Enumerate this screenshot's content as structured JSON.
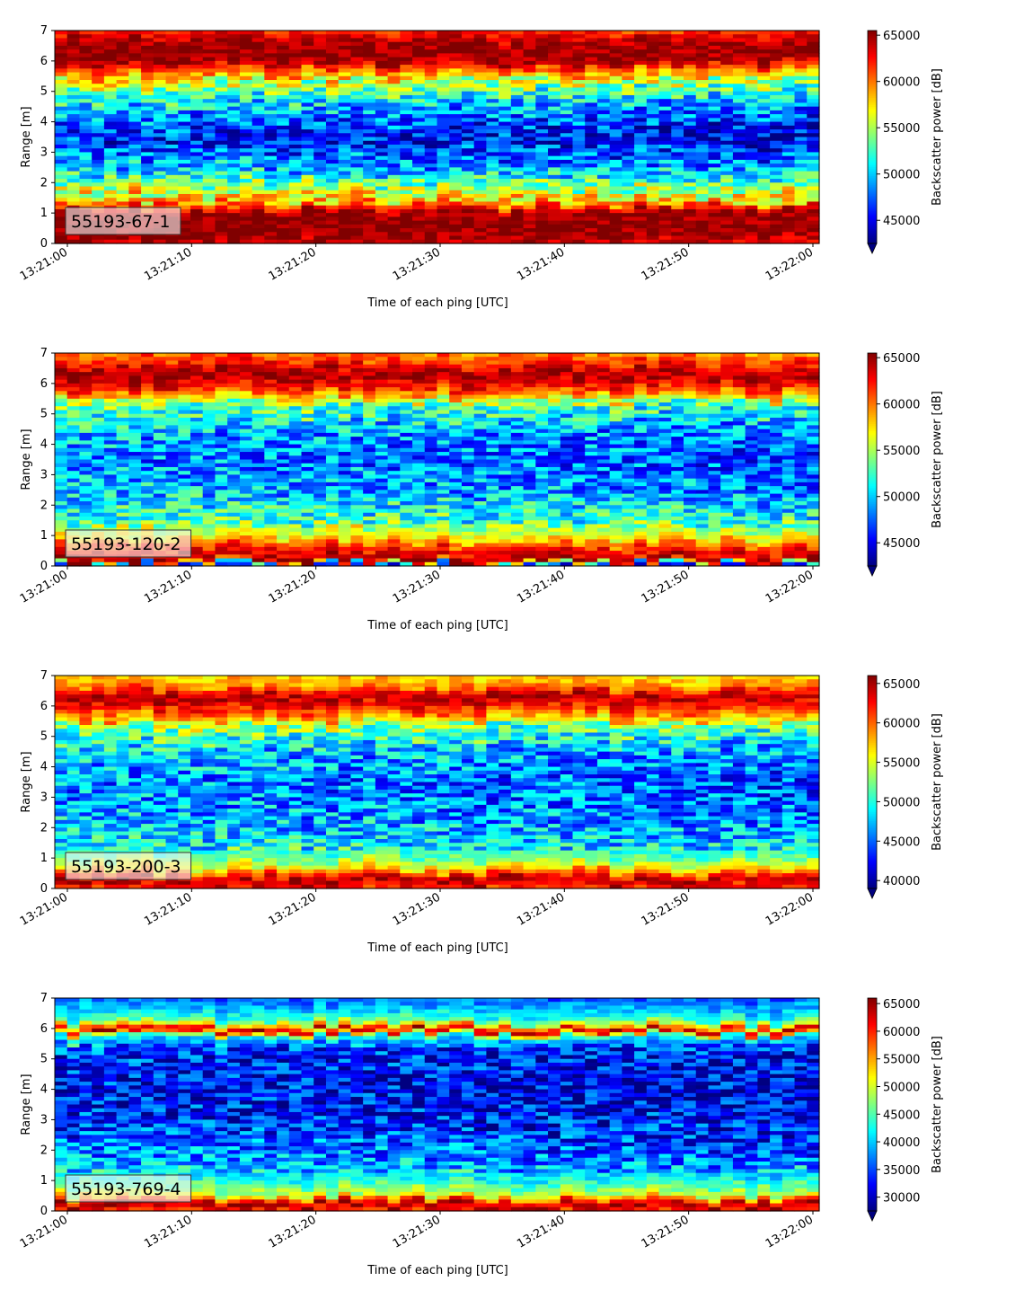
{
  "chart_data": [
    {
      "type": "heatmap",
      "label": "55193-67-1",
      "xlabel": "Time of each ping [UTC]",
      "ylabel": "Range [m]",
      "colorbar_label": "Backscatter power [dB]",
      "colormap": "jet",
      "x_range": [
        "13:21:00",
        "13:22:00"
      ],
      "x_ticks": [
        "13:21:00",
        "13:21:10",
        "13:21:20",
        "13:21:30",
        "13:21:40",
        "13:21:50",
        "13:22:00"
      ],
      "ylim": [
        0,
        7
      ],
      "y_ticks": [
        "0",
        "1",
        "2",
        "3",
        "4",
        "5",
        "6",
        "7"
      ],
      "color_range": [
        42500,
        65500
      ],
      "colorbar_ticks": [
        "45000",
        "50000",
        "55000",
        "60000",
        "65000"
      ],
      "colorbar_extend": "min",
      "profile_range_m": [
        0,
        0.3,
        1.0,
        1.3,
        2.0,
        2.5,
        3.5,
        4.0,
        4.8,
        5.5,
        6.0,
        6.5,
        7.0
      ],
      "profile_values": [
        64000,
        65500,
        65500,
        60000,
        54000,
        50000,
        46000,
        48000,
        52000,
        58000,
        65000,
        65500,
        62000
      ]
    },
    {
      "type": "heatmap",
      "label": "55193-120-2",
      "xlabel": "Time of each ping [UTC]",
      "ylabel": "Range [m]",
      "colorbar_label": "Backscatter power [dB]",
      "colormap": "jet",
      "x_range": [
        "13:21:00",
        "13:22:00"
      ],
      "x_ticks": [
        "13:21:00",
        "13:21:10",
        "13:21:20",
        "13:21:30",
        "13:21:40",
        "13:21:50",
        "13:22:00"
      ],
      "ylim": [
        0,
        7
      ],
      "y_ticks": [
        "0",
        "1",
        "2",
        "3",
        "4",
        "5",
        "6",
        "7"
      ],
      "color_range": [
        42500,
        65500
      ],
      "colorbar_ticks": [
        "45000",
        "50000",
        "55000",
        "60000",
        "65000"
      ],
      "colorbar_extend": "min",
      "profile_range_m": [
        0,
        0.2,
        0.6,
        1.0,
        1.5,
        2.5,
        3.5,
        4.5,
        5.3,
        5.8,
        6.3,
        6.7,
        7.0
      ],
      "profile_values": [
        46000,
        65500,
        62000,
        57000,
        53000,
        50000,
        48500,
        50000,
        54000,
        62000,
        65500,
        62000,
        60000
      ]
    },
    {
      "type": "heatmap",
      "label": "55193-200-3",
      "xlabel": "Time of each ping [UTC]",
      "ylabel": "Range [m]",
      "colorbar_label": "Backscatter power [dB]",
      "colormap": "jet",
      "x_range": [
        "13:21:00",
        "13:22:00"
      ],
      "x_ticks": [
        "13:21:00",
        "13:21:10",
        "13:21:20",
        "13:21:30",
        "13:21:40",
        "13:21:50",
        "13:22:00"
      ],
      "ylim": [
        0,
        7
      ],
      "y_ticks": [
        "0",
        "1",
        "2",
        "3",
        "4",
        "5",
        "6",
        "7"
      ],
      "color_range": [
        39000,
        66000
      ],
      "colorbar_ticks": [
        "40000",
        "45000",
        "50000",
        "55000",
        "60000",
        "65000"
      ],
      "colorbar_extend": "min",
      "profile_range_m": [
        0,
        0.3,
        0.6,
        1.0,
        1.5,
        2.5,
        3.5,
        4.5,
        5.3,
        5.8,
        6.3,
        6.7,
        7.0
      ],
      "profile_values": [
        62000,
        65500,
        58000,
        52000,
        49000,
        47000,
        46000,
        48000,
        53000,
        61000,
        65000,
        59000,
        57000
      ]
    },
    {
      "type": "heatmap",
      "label": "55193-769-4",
      "xlabel": "Time of each ping [UTC]",
      "ylabel": "Range [m]",
      "colorbar_label": "Backscatter power [dB]",
      "colormap": "jet",
      "x_range": [
        "13:21:00",
        "13:22:00"
      ],
      "x_ticks": [
        "13:21:00",
        "13:21:10",
        "13:21:20",
        "13:21:30",
        "13:21:40",
        "13:21:50",
        "13:22:00"
      ],
      "ylim": [
        0,
        7
      ],
      "y_ticks": [
        "0",
        "1",
        "2",
        "3",
        "4",
        "5",
        "6",
        "7"
      ],
      "color_range": [
        27500,
        66000
      ],
      "colorbar_ticks": [
        "30000",
        "35000",
        "40000",
        "45000",
        "50000",
        "55000",
        "60000",
        "65000"
      ],
      "colorbar_extend": "min",
      "profile_range_m": [
        0,
        0.2,
        0.5,
        1.0,
        1.5,
        2.5,
        3.5,
        4.5,
        5.3,
        5.7,
        5.9,
        6.2,
        6.6,
        7.0
      ],
      "profile_values": [
        60000,
        65500,
        50000,
        43000,
        39000,
        35000,
        33000,
        33000,
        35000,
        42000,
        65000,
        46000,
        40000,
        36000
      ]
    }
  ]
}
